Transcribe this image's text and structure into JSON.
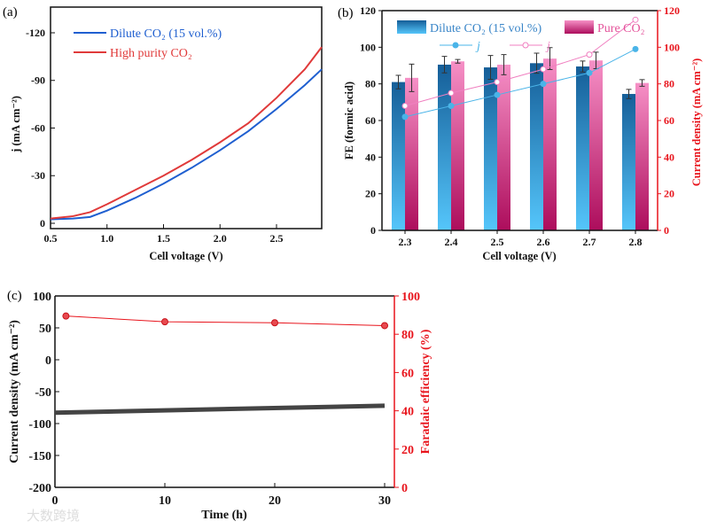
{
  "chart_data": [
    {
      "panel": "(a)",
      "type": "line",
      "xlabel": "Cell voltage (V)",
      "ylabel": "j (mA cm⁻²)",
      "xlim": [
        0.5,
        2.9
      ],
      "ylim": [
        3,
        -133
      ],
      "xticks": [
        0.5,
        1.0,
        1.5,
        2.0,
        2.5
      ],
      "xtick_labels": [
        "0.5",
        "1.0",
        "1.5",
        "2.0",
        "2.5"
      ],
      "yticks": [
        0,
        -30,
        -60,
        -90,
        -120
      ],
      "ytick_labels": [
        "0",
        "-30",
        "-60",
        "-90",
        "-120"
      ],
      "series": [
        {
          "name": "Dilute CO₂ (15 vol.%)",
          "color": "#1f5fd0",
          "x": [
            0.5,
            0.7,
            0.85,
            1.0,
            1.25,
            1.5,
            1.75,
            2.0,
            2.25,
            2.5,
            2.75,
            2.9
          ],
          "y": [
            -2.5,
            -3,
            -4,
            -8,
            -16,
            -25,
            -35,
            -46,
            -58,
            -72,
            -87,
            -97
          ]
        },
        {
          "name": "High purity CO₂",
          "color": "#e03a3a",
          "x": [
            0.5,
            0.7,
            0.85,
            1.0,
            1.25,
            1.5,
            1.75,
            2.0,
            2.25,
            2.5,
            2.75,
            2.9
          ],
          "y": [
            -3,
            -4.5,
            -7,
            -12,
            -21,
            -30,
            -40,
            -51,
            -63,
            -79,
            -97,
            -111
          ]
        }
      ],
      "legend": "top-left"
    },
    {
      "panel": "(b)",
      "type": "bar",
      "xlabel": "Cell voltage (V)",
      "ylabel": "FE (formic acid)",
      "ylabel_right": "Current density (mA cm⁻²)",
      "categories": [
        "2.3",
        "2.4",
        "2.5",
        "2.6",
        "2.7",
        "2.8"
      ],
      "ylim": [
        0,
        120
      ],
      "ylim_right": [
        0,
        120
      ],
      "yticks": [
        "0",
        "20",
        "40",
        "60",
        "80",
        "100",
        "120"
      ],
      "series": [
        {
          "name": "Dilute CO₂ (15 vol.%)",
          "values": [
            81,
            90.5,
            89,
            91.3,
            89.5,
            74.5
          ],
          "errors": [
            3.7,
            4.5,
            6.5,
            5.5,
            3,
            2.5
          ],
          "color": "#2a7fc0"
        },
        {
          "name": "Pure CO₂",
          "values": [
            83.3,
            92.3,
            90.5,
            93.8,
            92.8,
            80.5
          ],
          "errors": [
            7.5,
            1,
            5.5,
            6,
            4.5,
            1.8
          ],
          "color": "#e4529a"
        }
      ],
      "line_series": [
        {
          "name": "j",
          "axis": "right",
          "values": [
            62,
            68,
            74,
            80,
            86,
            99
          ],
          "color": "#4ab4e8"
        },
        {
          "name": "j",
          "axis": "right",
          "values": [
            68,
            75,
            81,
            88,
            96,
            115
          ],
          "color": "#f07fc0"
        }
      ],
      "legend": "top"
    },
    {
      "panel": "(c)",
      "type": "line",
      "xlabel": "Time (h)",
      "ylabel": "Current density (mA cm⁻²)",
      "ylabel_right": "Faradaic efficiency (%)",
      "xlim": [
        0,
        31
      ],
      "ylim": [
        -200,
        100
      ],
      "ylim_right": [
        0,
        100
      ],
      "xticks": [
        "0",
        "10",
        "20",
        "30"
      ],
      "yticks": [
        "100",
        "50",
        "0",
        "-50",
        "-100",
        "-150",
        "-200"
      ],
      "yticks_right": [
        "100",
        "80",
        "60",
        "40",
        "20",
        "0"
      ],
      "series": [
        {
          "name": "Current density",
          "axis": "left",
          "color": "#444444",
          "x": [
            0,
            30
          ],
          "y": [
            -83,
            -72
          ]
        },
        {
          "name": "Faradaic efficiency",
          "axis": "right",
          "color": "#e8141c",
          "x": [
            1,
            10,
            20,
            30
          ],
          "y": [
            89.5,
            86.5,
            86,
            84.5
          ]
        }
      ]
    }
  ],
  "watermark": "大数跨境"
}
